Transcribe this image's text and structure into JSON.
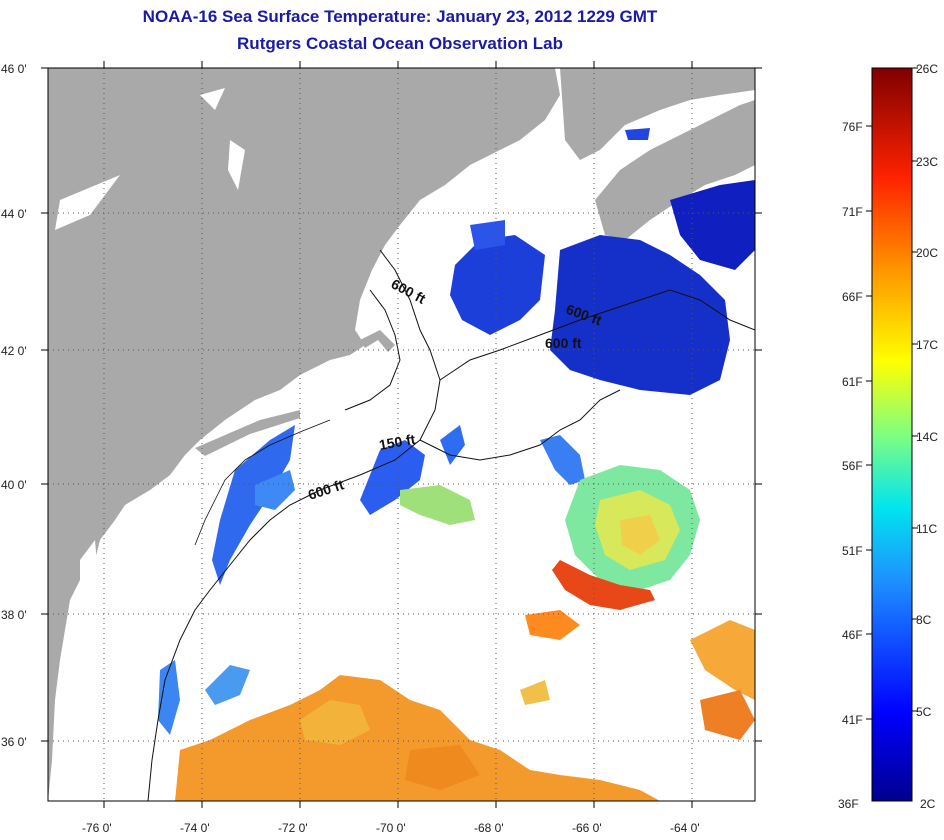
{
  "title": "NOAA-16 Sea Surface Temperature:  January 23, 2012 1229 GMT",
  "subtitle": "Rutgers Coastal Ocean Observation Lab",
  "map": {
    "lon_ticks": [
      "-76 0'",
      "-74 0'",
      "-72 0'",
      "-70 0'",
      "-68 0'",
      "-66 0'",
      "-64 0'"
    ],
    "lat_ticks": [
      "46 0'",
      "44 0'",
      "42 0'",
      "40 0'",
      "38 0'",
      "36 0'"
    ],
    "contour_labels": [
      "600 ft",
      "600 ft",
      "600 ft",
      "150 ft",
      "600 ft"
    ],
    "colors": {
      "land": "#a9a9a9",
      "ocean_no_data": "#ffffff"
    }
  },
  "colorbar": {
    "celsius_labels": [
      "26C",
      "23C",
      "20C",
      "17C",
      "14C",
      "11C",
      "8C",
      "5C",
      "2C"
    ],
    "fahrenheit_labels": [
      "76F",
      "71F",
      "66F",
      "61F",
      "56F",
      "51F",
      "46F",
      "41F",
      "36F"
    ]
  }
}
